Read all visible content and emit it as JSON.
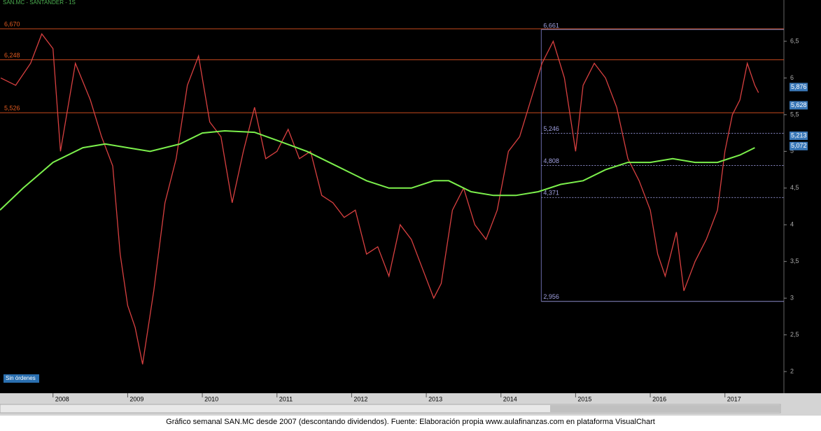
{
  "header": "SAN.MC - SANTANDER - 1S",
  "button": "Sin órdenes",
  "caption": "Gráfico semanal SAN.MC desde 2007 (descontando dividendos). Fuente: Elaboración propia www.aulafinanzas.com en plataforma VisualChart",
  "chart_data": {
    "type": "line",
    "xlim": [
      2007.29,
      2017.79
    ],
    "ylim": [
      1.705,
      6.986
    ],
    "xticks": [
      2008,
      2009,
      2010,
      2011,
      2012,
      2013,
      2014,
      2015,
      2016,
      2017
    ],
    "yticks": [
      {
        "value": 6.5,
        "label": "6,5"
      },
      {
        "value": 6,
        "label": "6"
      },
      {
        "value": 5.5,
        "label": "5,5"
      },
      {
        "value": 5,
        "label": "5"
      },
      {
        "value": 4.5,
        "label": "4,5"
      },
      {
        "value": 4,
        "label": "4"
      },
      {
        "value": 3.5,
        "label": "3,5"
      },
      {
        "value": 3,
        "label": "3"
      },
      {
        "value": 2.5,
        "label": "2,5"
      },
      {
        "value": 2,
        "label": "2"
      }
    ],
    "series": [
      {
        "color": "#d84040",
        "x": [
          2007.3,
          2007.5,
          2007.7,
          2007.85,
          2008.0,
          2008.1,
          2008.3,
          2008.5,
          2008.65,
          2008.8,
          2008.9,
          2009.0,
          2009.1,
          2009.2,
          2009.35,
          2009.5,
          2009.65,
          2009.8,
          2009.95,
          2010.1,
          2010.25,
          2010.4,
          2010.55,
          2010.7,
          2010.85,
          2011.0,
          2011.15,
          2011.3,
          2011.45,
          2011.6,
          2011.75,
          2011.9,
          2012.05,
          2012.2,
          2012.35,
          2012.5,
          2012.65,
          2012.8,
          2012.95,
          2013.1,
          2013.2,
          2013.35,
          2013.5,
          2013.65,
          2013.8,
          2013.95,
          2014.1,
          2014.25,
          2014.4,
          2014.55,
          2014.7,
          2014.85,
          2015.0,
          2015.1,
          2015.25,
          2015.4,
          2015.55,
          2015.7,
          2015.85,
          2016.0,
          2016.1,
          2016.2,
          2016.35,
          2016.45,
          2016.6,
          2016.75,
          2016.9,
          2017.0,
          2017.1,
          2017.2,
          2017.3,
          2017.4,
          2017.45
        ],
        "values": [
          6.0,
          5.9,
          6.2,
          6.6,
          6.4,
          5.0,
          6.2,
          5.7,
          5.2,
          4.8,
          3.6,
          2.9,
          2.6,
          2.1,
          3.1,
          4.3,
          4.9,
          5.9,
          6.3,
          5.4,
          5.2,
          4.3,
          5.0,
          5.6,
          4.9,
          5.0,
          5.3,
          4.9,
          5.0,
          4.4,
          4.3,
          4.1,
          4.2,
          3.6,
          3.7,
          3.3,
          4.0,
          3.8,
          3.4,
          3.0,
          3.2,
          4.2,
          4.5,
          4.0,
          3.8,
          4.2,
          5.0,
          5.2,
          5.7,
          6.2,
          6.5,
          6.0,
          5.0,
          5.9,
          6.2,
          6.0,
          5.6,
          4.9,
          4.6,
          4.2,
          3.6,
          3.3,
          3.9,
          3.1,
          3.5,
          3.8,
          4.2,
          5.0,
          5.5,
          5.7,
          6.2,
          5.9,
          5.8
        ]
      },
      {
        "color": "#7cf04c",
        "x": [
          2007.29,
          2007.6,
          2008.0,
          2008.4,
          2008.7,
          2009.0,
          2009.3,
          2009.7,
          2010.0,
          2010.3,
          2010.7,
          2011.0,
          2011.4,
          2011.8,
          2012.2,
          2012.5,
          2012.8,
          2013.1,
          2013.3,
          2013.6,
          2013.9,
          2014.2,
          2014.5,
          2014.8,
          2015.1,
          2015.4,
          2015.7,
          2016.0,
          2016.3,
          2016.6,
          2016.9,
          2017.2,
          2017.4
        ],
        "values": [
          4.2,
          4.5,
          4.85,
          5.05,
          5.1,
          5.05,
          5.0,
          5.1,
          5.25,
          5.28,
          5.26,
          5.15,
          5.0,
          4.8,
          4.6,
          4.5,
          4.5,
          4.6,
          4.6,
          4.45,
          4.4,
          4.4,
          4.45,
          4.55,
          4.6,
          4.75,
          4.85,
          4.85,
          4.9,
          4.85,
          4.85,
          4.95,
          5.05
        ]
      }
    ],
    "levels": [
      {
        "value": 6.67,
        "label": "6,670"
      },
      {
        "value": 6.248,
        "label": "6,248"
      },
      {
        "value": 5.526,
        "label": "5,526"
      }
    ],
    "fib_box": {
      "x": 2014.54,
      "top": {
        "value": 6.661,
        "label": "6,661"
      },
      "bottom": {
        "value": 2.956,
        "label": "2,956"
      },
      "lines": [
        {
          "value": 5.246,
          "label": "5,246"
        },
        {
          "value": 4.808,
          "label": "4,808"
        },
        {
          "value": 4.371,
          "label": "4,371"
        }
      ]
    },
    "price_tags": [
      {
        "value": 5.876,
        "label": "5,876"
      },
      {
        "value": 5.628,
        "label": "5,628"
      },
      {
        "value": 5.213,
        "label": "5,213"
      },
      {
        "value": 5.072,
        "label": "5,072"
      }
    ]
  }
}
